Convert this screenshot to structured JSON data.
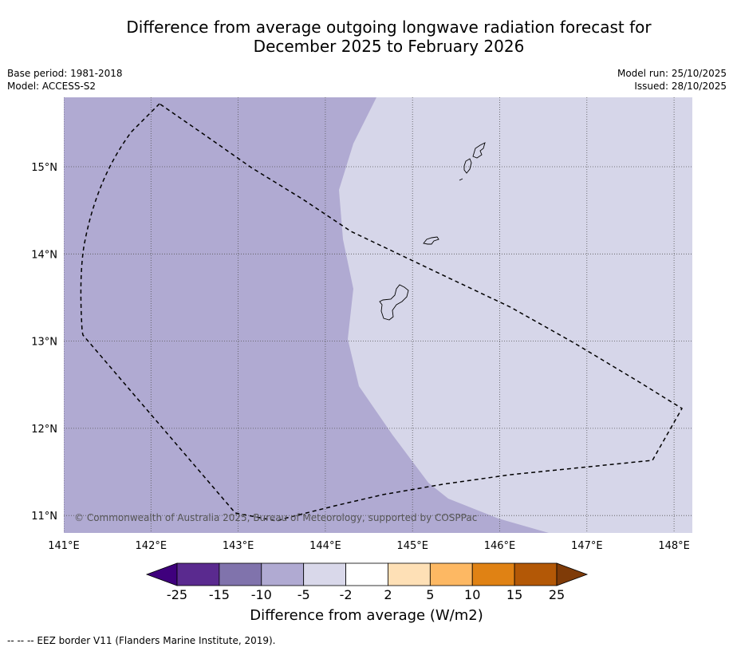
{
  "title": {
    "line1": "Difference from average outgoing longwave radiation forecast for",
    "line2": "December 2025 to February 2026"
  },
  "meta": {
    "base_period": "Base period: 1981-2018",
    "model": "Model: ACCESS-S2",
    "model_run": "Model run: 25/10/2025",
    "issued": "Issued: 28/10/2025"
  },
  "map": {
    "copyright": "© Commonwealth of Australia 2025, Bureau of Meteorology, supported by COSPPac",
    "lon_labels": [
      "141°E",
      "142°E",
      "143°E",
      "144°E",
      "145°E",
      "146°E",
      "147°E",
      "148°E"
    ],
    "lat_labels": [
      "15°N",
      "14°N",
      "13°N",
      "12°N",
      "11°N"
    ],
    "lon_values": [
      141,
      142,
      143,
      144,
      145,
      146,
      147,
      148
    ],
    "lat_values": [
      15,
      14,
      13,
      12,
      11
    ],
    "colors": {
      "zone_minus10_minus5": "#b0aad2",
      "zone_minus5_minus2": "#d6d6e9"
    }
  },
  "colorbar": {
    "title": "Difference from average (W/m2)",
    "tick_labels": [
      "-25",
      "-15",
      "-10",
      "-5",
      "-2",
      "2",
      "5",
      "10",
      "15",
      "25"
    ],
    "colors": [
      "#3f007d",
      "#5a2a8f",
      "#8073ac",
      "#b0aad2",
      "#d9d8ea",
      "#ffffff",
      "#fee0b6",
      "#fdb863",
      "#e08214",
      "#b35806",
      "#7f3b08"
    ]
  },
  "footer": {
    "legend_text": "--  --  -- EEZ border V11 (Flanders Marine Institute, 2019)."
  }
}
